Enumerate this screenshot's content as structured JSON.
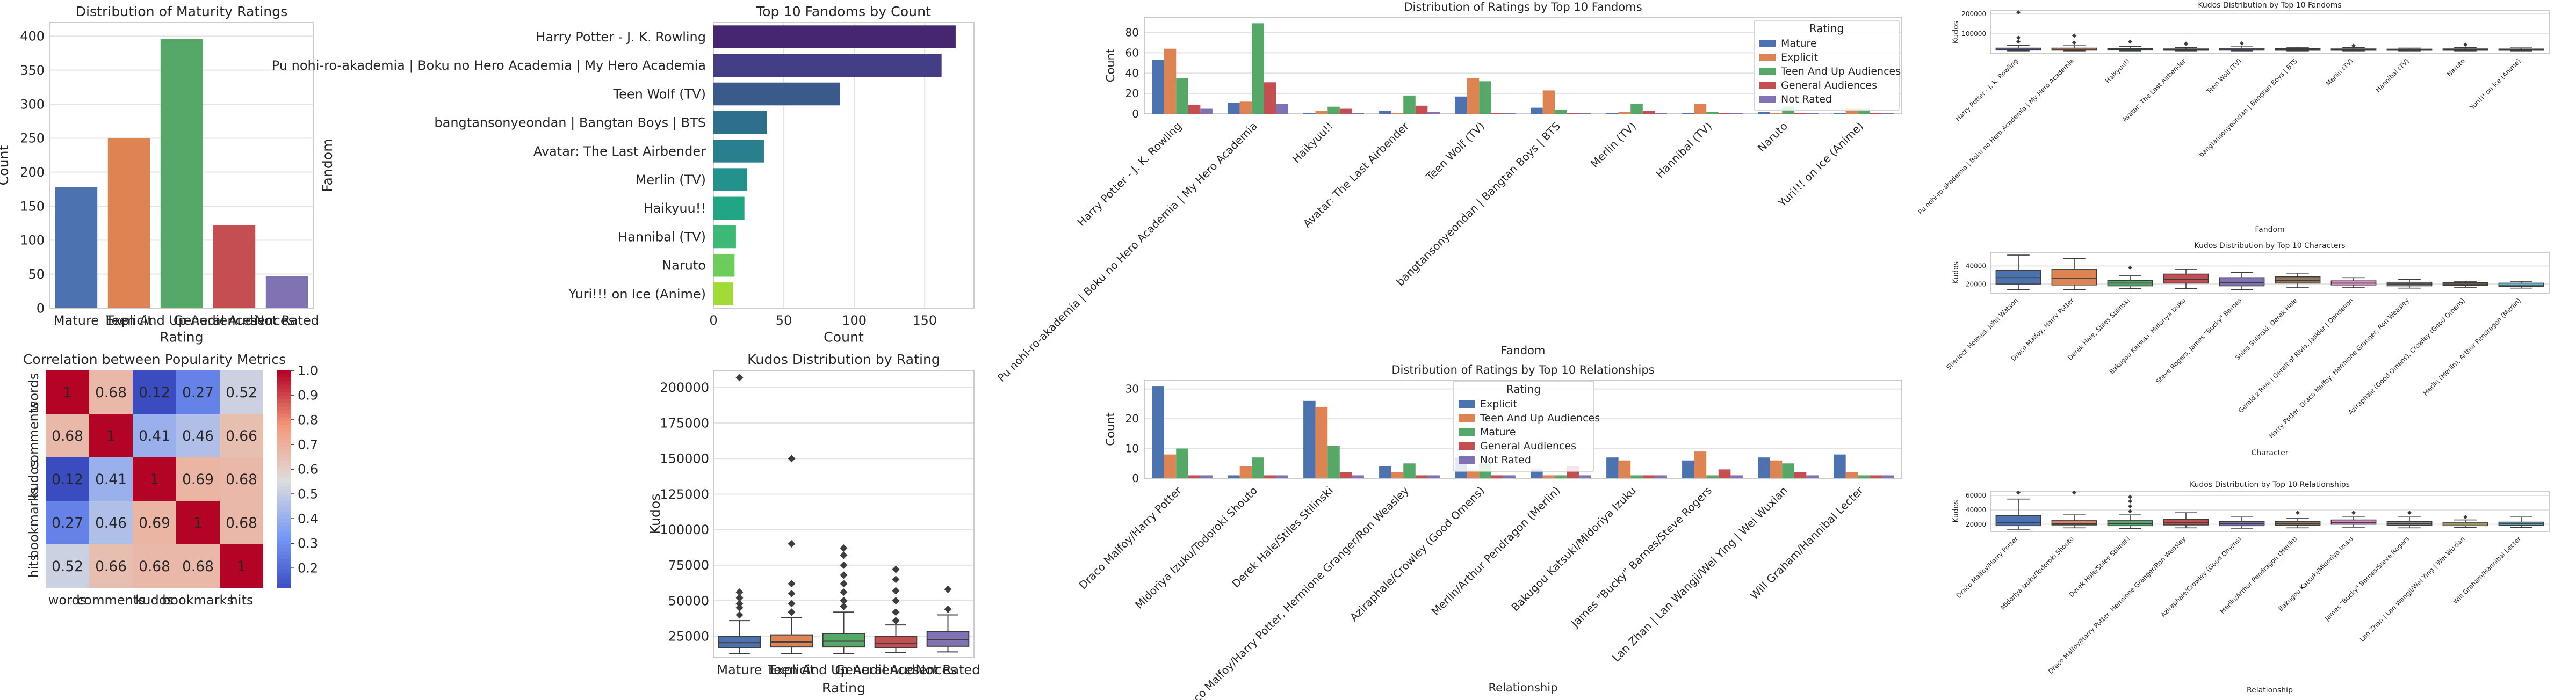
{
  "colors": {
    "blue": "#4c72b0",
    "orange": "#dd8452",
    "green": "#55a868",
    "red": "#c44e52",
    "purple": "#8172b3",
    "brown": "#937860",
    "pink": "#da8bc3",
    "gray": "#8c8c8c",
    "olive": "#ccb974",
    "cyan": "#64b5cd"
  },
  "chart_data": [
    {
      "id": "maturity",
      "type": "bar",
      "title": "Distribution of Maturity Ratings",
      "xlabel": "Rating",
      "ylabel": "Count",
      "categories": [
        "Mature",
        "Explicit",
        "Teen And Up Audiences",
        "General Audiences",
        "Not Rated"
      ],
      "values": [
        178,
        250,
        396,
        122,
        47
      ],
      "ylim": [
        0,
        420
      ],
      "yticks": [
        "0",
        "50",
        "100",
        "150",
        "200",
        "250",
        "300",
        "350",
        "400"
      ]
    },
    {
      "id": "fandoms",
      "type": "bar",
      "orientation": "horizontal",
      "title": "Top 10 Fandoms by Count",
      "xlabel": "Count",
      "ylabel": "Fandom",
      "categories": [
        "Harry Potter - J. K. Rowling",
        "Pu nohi-ro-akademia | Boku no Hero Academia | My Hero Academia",
        "Teen Wolf (TV)",
        "bangtansonyeondan | Bangtan Boys | BTS",
        "Avatar: The Last Airbender",
        "Merlin (TV)",
        "Haikyuu!!",
        "Hannibal (TV)",
        "Naruto",
        "Yuri!!! on Ice (Anime)"
      ],
      "values": [
        172,
        162,
        90,
        38,
        36,
        24,
        22,
        16,
        15,
        14
      ],
      "xlim": [
        0,
        185
      ],
      "xticks": [
        "0",
        "50",
        "100",
        "150"
      ]
    },
    {
      "id": "heatmap",
      "type": "heatmap",
      "title": "Correlation between Popularity Metrics",
      "labels": [
        "words",
        "comments",
        "kudos",
        "bookmarks",
        "hits"
      ],
      "matrix": [
        [
          1,
          0.68,
          0.12,
          0.27,
          0.52
        ],
        [
          0.68,
          1,
          0.41,
          0.46,
          0.66
        ],
        [
          0.12,
          0.41,
          1,
          0.69,
          0.68
        ],
        [
          0.27,
          0.46,
          0.69,
          1,
          0.68
        ],
        [
          0.52,
          0.66,
          0.68,
          0.68,
          1
        ]
      ],
      "cell_text": [
        [
          "1",
          "0.68",
          "0.12",
          "0.27",
          "0.52"
        ],
        [
          "0.68",
          "1",
          "0.41",
          "0.46",
          "0.66"
        ],
        [
          "0.12",
          "0.41",
          "1",
          "0.69",
          "0.68"
        ],
        [
          "0.27",
          "0.46",
          "0.69",
          "1",
          "0.68"
        ],
        [
          "0.52",
          "0.66",
          "0.68",
          "0.68",
          "1"
        ]
      ],
      "colorbar_ticks": [
        "1.0",
        "0.9",
        "0.8",
        "0.7",
        "0.6",
        "0.5",
        "0.4",
        "0.3",
        "0.2"
      ]
    },
    {
      "id": "kudos_rating",
      "type": "box",
      "title": "Kudos Distribution by Rating",
      "xlabel": "Rating",
      "ylabel": "Kudos",
      "categories": [
        "Mature",
        "Explicit",
        "Teen And Up Audiences",
        "General Audiences",
        "Not Rated"
      ],
      "boxes": [
        {
          "q1": 17000,
          "med": 20500,
          "q3": 25000,
          "lo": 13000,
          "hi": 36000,
          "out": [
            40000,
            45000,
            48000,
            52000,
            56000,
            207000
          ]
        },
        {
          "q1": 17500,
          "med": 21000,
          "q3": 26000,
          "lo": 13000,
          "hi": 38000,
          "out": [
            42000,
            48000,
            55000,
            62000,
            90000,
            150000
          ]
        },
        {
          "q1": 17500,
          "med": 21500,
          "q3": 27000,
          "lo": 13000,
          "hi": 42000,
          "out": [
            46000,
            50000,
            56000,
            62000,
            68000,
            75000,
            82000,
            87000
          ]
        },
        {
          "q1": 17000,
          "med": 20000,
          "q3": 25000,
          "lo": 13500,
          "hi": 33000,
          "out": [
            36000,
            42000,
            50000,
            57000,
            65000,
            72000
          ]
        },
        {
          "q1": 18000,
          "med": 22500,
          "q3": 28500,
          "lo": 14000,
          "hi": 40000,
          "out": [
            44000,
            58000
          ]
        }
      ],
      "ylim": [
        10000,
        212000
      ],
      "yticks": [
        "25000",
        "50000",
        "75000",
        "100000",
        "125000",
        "150000",
        "175000",
        "200000"
      ]
    },
    {
      "id": "ratings_fandoms",
      "type": "bar",
      "title": "Distribution of Ratings by Top 10 Fandoms",
      "xlabel": "Fandom",
      "ylabel": "Count",
      "legend_title": "Rating",
      "categories": [
        "Harry Potter - J. K. Rowling",
        "Pu nohi-ro-akademia | Boku no Hero Academia | My Hero Academia",
        "Haikyuu!!",
        "Avatar: The Last Airbender",
        "Teen Wolf (TV)",
        "bangtansonyeondan | Bangtan Boys | BTS",
        "Merlin (TV)",
        "Hannibal (TV)",
        "Naruto",
        "Yuri!!! on Ice (Anime)"
      ],
      "series": [
        {
          "name": "Mature",
          "values": [
            53,
            11,
            1,
            3,
            17,
            6,
            1,
            1,
            2,
            1
          ]
        },
        {
          "name": "Explicit",
          "values": [
            64,
            12,
            3,
            1,
            35,
            23,
            2,
            10,
            1,
            5
          ]
        },
        {
          "name": "Teen And Up Audiences",
          "values": [
            35,
            89,
            7,
            18,
            32,
            4,
            10,
            2,
            7,
            5
          ]
        },
        {
          "name": "General Audiences",
          "values": [
            9,
            31,
            5,
            8,
            1,
            1,
            3,
            1,
            1,
            1
          ]
        },
        {
          "name": "Not Rated",
          "values": [
            5,
            10,
            1,
            2,
            1,
            1,
            1,
            1,
            1,
            1
          ]
        }
      ],
      "ylim": [
        0,
        95
      ],
      "yticks": [
        "0",
        "20",
        "40",
        "60",
        "80"
      ]
    },
    {
      "id": "ratings_relationships",
      "type": "bar",
      "title": "Distribution of Ratings by Top 10 Relationships",
      "xlabel": "Relationship",
      "ylabel": "Count",
      "legend_title": "Rating",
      "categories": [
        "Draco Malfoy/Harry Potter",
        "Midoriya Izuku/Todoroki Shouto",
        "Derek Hale/Stiles Stilinski",
        "Draco Malfoy/Harry Potter, Hermione Granger/Ron Weasley",
        "Aziraphale/Crowley (Good Omens)",
        "Merlin/Arthur Pendragon (Merlin)",
        "Bakugou Katsuki/Midoriya Izuku",
        "James \"Bucky\" Barnes/Steve Rogers",
        "Lan Zhan | Lan Wangji/Wei Ying | Wei Wuxian",
        "Will Graham/Hannibal Lecter"
      ],
      "series": [
        {
          "name": "Explicit",
          "values": [
            31,
            1,
            26,
            4,
            7,
            3,
            7,
            6,
            7,
            8
          ]
        },
        {
          "name": "Teen And Up Audiences",
          "values": [
            8,
            4,
            24,
            2,
            3,
            1,
            6,
            9,
            6,
            2
          ]
        },
        {
          "name": "Mature",
          "values": [
            10,
            7,
            11,
            5,
            5,
            1,
            1,
            1,
            5,
            1
          ]
        },
        {
          "name": "General Audiences",
          "values": [
            1,
            1,
            2,
            1,
            1,
            4,
            1,
            3,
            2,
            1
          ]
        },
        {
          "name": "Not Rated",
          "values": [
            1,
            1,
            1,
            1,
            1,
            1,
            1,
            1,
            1,
            1
          ]
        }
      ],
      "ylim": [
        0,
        33
      ],
      "yticks": [
        "0",
        "10",
        "20",
        "30"
      ]
    },
    {
      "id": "kudos_fandoms",
      "type": "box",
      "title": "Kudos Distribution by Top 10 Fandoms",
      "xlabel": "Fandom",
      "ylabel": "Kudos",
      "categories": [
        "Harry Potter - J. K. Rowling",
        "Pu nohi-ro-akademia | Boku no Hero Academia | My Hero Academia",
        "Haikyuu!!",
        "Avatar: The Last Airbender",
        "Teen Wolf (TV)",
        "bangtansonyeondan | Bangtan Boys | BTS",
        "Merlin (TV)",
        "Hannibal (TV)",
        "Naruto",
        "Yuri!!! on Ice (Anime)"
      ],
      "boxes": [
        {
          "q1": 18000,
          "med": 22000,
          "q3": 28000,
          "lo": 14000,
          "hi": 42000,
          "out": [
            60000,
            80000,
            207000
          ]
        },
        {
          "q1": 17500,
          "med": 22000,
          "q3": 28000,
          "lo": 14000,
          "hi": 40000,
          "out": [
            55000,
            90000
          ]
        },
        {
          "q1": 18000,
          "med": 21000,
          "q3": 26000,
          "lo": 14000,
          "hi": 36000,
          "out": [
            60000
          ]
        },
        {
          "q1": 17000,
          "med": 20000,
          "q3": 24000,
          "lo": 14000,
          "hi": 30000,
          "out": [
            50000
          ]
        },
        {
          "q1": 17500,
          "med": 21500,
          "q3": 27000,
          "lo": 14000,
          "hi": 38000,
          "out": [
            52000
          ]
        },
        {
          "q1": 17000,
          "med": 20500,
          "q3": 25000,
          "lo": 14000,
          "hi": 32000,
          "out": []
        },
        {
          "q1": 17000,
          "med": 20000,
          "q3": 24000,
          "lo": 14000,
          "hi": 30000,
          "out": [
            40000
          ]
        },
        {
          "q1": 17000,
          "med": 19500,
          "q3": 23000,
          "lo": 14000,
          "hi": 28000,
          "out": []
        },
        {
          "q1": 17000,
          "med": 20000,
          "q3": 24000,
          "lo": 14000,
          "hi": 30000,
          "out": [
            45000
          ]
        },
        {
          "q1": 17000,
          "med": 19500,
          "q3": 23500,
          "lo": 14000,
          "hi": 29000,
          "out": []
        }
      ],
      "ylim": [
        0,
        215000
      ],
      "yticks": [
        "100000",
        "200000"
      ]
    },
    {
      "id": "kudos_characters",
      "type": "box",
      "title": "Kudos Distribution by Top 10 Characters",
      "xlabel": "Character",
      "ylabel": "Kudos",
      "categories": [
        "Sherlock Holmes, John Watson",
        "Draco Malfoy, Harry Potter",
        "Derek Hale, Stiles Stilinski",
        "Bakugou Katsuki, Midoriya Izuku",
        "Steve Rogers, James \"Bucky\" Barnes",
        "Stiles Stilinski, Derek Hale",
        "Gerald z Rivii | Geralt of Rivia, Jaskier | Dandelion",
        "Harry Potter, Draco Malfoy, Hermione Granger, Ron Weasley",
        "Aziraphale (Good Omens), Crowley (Good Omens)",
        "Merlin (Merlin), Arthur Pendragon (Merlin)"
      ],
      "boxes": [
        {
          "q1": 20000,
          "med": 27000,
          "q3": 35000,
          "lo": 14000,
          "hi": 52000,
          "out": []
        },
        {
          "q1": 19000,
          "med": 26000,
          "q3": 36000,
          "lo": 14000,
          "hi": 48000,
          "out": []
        },
        {
          "q1": 18000,
          "med": 21000,
          "q3": 24000,
          "lo": 15000,
          "hi": 29000,
          "out": [
            38000
          ]
        },
        {
          "q1": 21000,
          "med": 25000,
          "q3": 31000,
          "lo": 15000,
          "hi": 36000,
          "out": []
        },
        {
          "q1": 18000,
          "med": 21500,
          "q3": 27000,
          "lo": 14000,
          "hi": 33000,
          "out": []
        },
        {
          "q1": 21000,
          "med": 24000,
          "q3": 28000,
          "lo": 16000,
          "hi": 32000,
          "out": []
        },
        {
          "q1": 19000,
          "med": 21000,
          "q3": 23500,
          "lo": 16000,
          "hi": 27000,
          "out": []
        },
        {
          "q1": 18000,
          "med": 20000,
          "q3": 22000,
          "lo": 15500,
          "hi": 25000,
          "out": []
        },
        {
          "q1": 18500,
          "med": 20000,
          "q3": 21500,
          "lo": 16500,
          "hi": 23000,
          "out": []
        },
        {
          "q1": 17500,
          "med": 19000,
          "q3": 21000,
          "lo": 15500,
          "hi": 23000,
          "out": []
        }
      ],
      "ylim": [
        10000,
        55000
      ],
      "yticks": [
        "20000",
        "40000"
      ]
    },
    {
      "id": "kudos_relationships",
      "type": "box",
      "title": "Kudos Distribution by Top 10 Relationships",
      "xlabel": "Relationship",
      "ylabel": "Kudos",
      "categories": [
        "Draco Malfoy/Harry Potter",
        "Midoriya Izuku/Todoroki Shouto",
        "Derek Hale/Stiles Stilinski",
        "Draco Malfoy/Harry Potter, Hermione Granger/Ron Weasley",
        "Aziraphale/Crowley (Good Omens)",
        "Merlin/Arthur Pendragon (Merlin)",
        "Bakugou Katsuki/Midoriya Izuku",
        "James \"Bucky\" Barnes/Steve Rogers",
        "Lan Zhan | Lan Wangji/Wei Ying | Wei Wuxian",
        "Will Graham/Hannibal Lecter"
      ],
      "boxes": [
        {
          "q1": 18000,
          "med": 22000,
          "q3": 32000,
          "lo": 13000,
          "hi": 55000,
          "out": [
            64000
          ]
        },
        {
          "q1": 19000,
          "med": 21000,
          "q3": 25000,
          "lo": 15000,
          "hi": 33000,
          "out": [
            64000
          ]
        },
        {
          "q1": 18000,
          "med": 21000,
          "q3": 25000,
          "lo": 14000,
          "hi": 33000,
          "out": [
            38000,
            45000,
            52000,
            58000
          ]
        },
        {
          "q1": 19000,
          "med": 22000,
          "q3": 27000,
          "lo": 15000,
          "hi": 36000,
          "out": []
        },
        {
          "q1": 18000,
          "med": 21000,
          "q3": 24000,
          "lo": 14500,
          "hi": 30000,
          "out": []
        },
        {
          "q1": 18500,
          "med": 21000,
          "q3": 24000,
          "lo": 15000,
          "hi": 28000,
          "out": [
            36000
          ]
        },
        {
          "q1": 20000,
          "med": 22500,
          "q3": 26000,
          "lo": 16000,
          "hi": 30000,
          "out": [
            36000
          ]
        },
        {
          "q1": 18500,
          "med": 21000,
          "q3": 24000,
          "lo": 15000,
          "hi": 30000,
          "out": [
            36000
          ]
        },
        {
          "q1": 18000,
          "med": 20000,
          "q3": 22000,
          "lo": 15500,
          "hi": 26000,
          "out": [
            30000
          ]
        },
        {
          "q1": 18500,
          "med": 20500,
          "q3": 23000,
          "lo": 15500,
          "hi": 30000,
          "out": []
        }
      ],
      "ylim": [
        10000,
        66000
      ],
      "yticks": [
        "20000",
        "40000",
        "60000"
      ]
    }
  ]
}
